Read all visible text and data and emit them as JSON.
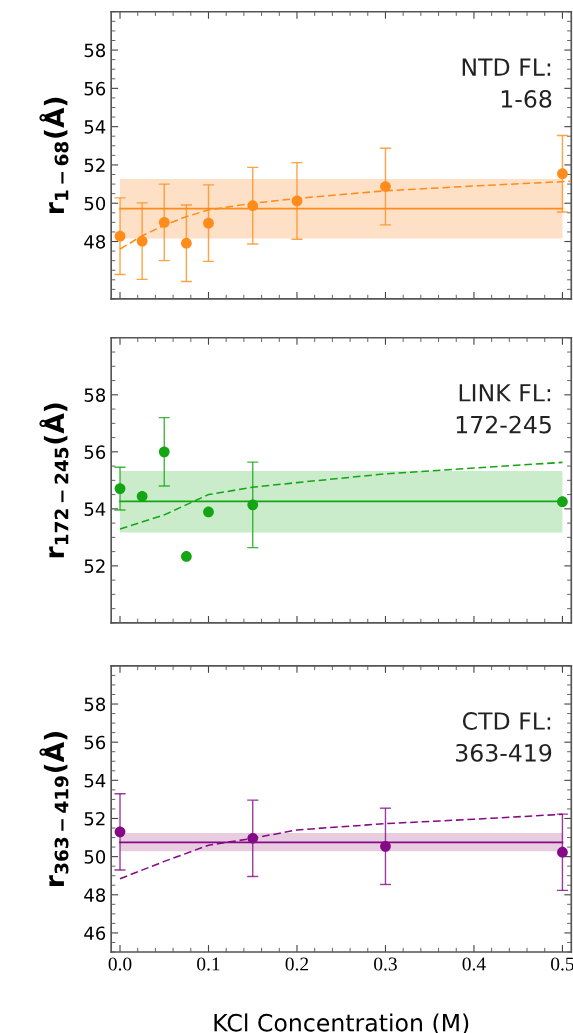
{
  "chart_data": [
    {
      "type": "scatter",
      "ylabel": "r$_{1−68}$(Å)",
      "annotations": [
        "NTD FL:\n1-68"
      ],
      "xlim": [
        -0.01,
        0.51
      ],
      "ylim": [
        45,
        60
      ],
      "yticks": [
        48,
        50,
        52,
        54,
        56,
        58
      ],
      "tick_labels": "y",
      "grid": false,
      "legend": false,
      "marker": "circle",
      "series": [
        {
          "color": "#ff8c1a",
          "x": [
            0,
            0.025,
            0.05,
            0.075,
            0.1,
            0.15,
            0.2,
            0.3,
            0.5
          ],
          "values": [
            48.28,
            48.02,
            49.0,
            47.91,
            48.96,
            49.87,
            50.12,
            50.87,
            51.54
          ],
          "errors": [
            2,
            2,
            2,
            2,
            2,
            2,
            2,
            2,
            2
          ]
        },
        {
          "type": "line",
          "marker": "none",
          "line_style": "dashed",
          "color": "#ff8c1a",
          "x": [
            0,
            0.025,
            0.05,
            0.075,
            0.1,
            0.15,
            0.2,
            0.3,
            0.4,
            0.51
          ],
          "values": [
            47.6,
            48.3,
            48.85,
            49.3,
            49.65,
            50.0,
            50.25,
            50.65,
            50.9,
            51.15
          ]
        }
      ],
      "ref_lines": [
        {
          "axis": "y",
          "value": 49.72,
          "color": "#ff8c1a"
        }
      ],
      "bands": [
        {
          "axis": "y",
          "from": 48.16,
          "to": 51.27,
          "color": "#fde0c5"
        }
      ]
    },
    {
      "type": "scatter",
      "ylabel": "r$_{172−245}$(Å)",
      "annotations": [
        "LINK FL:\n172-245"
      ],
      "xlim": [
        -0.01,
        0.51
      ],
      "ylim": [
        50,
        60
      ],
      "yticks": [
        52,
        54,
        56,
        58
      ],
      "tick_labels": "y",
      "grid": false,
      "legend": false,
      "marker": "circle",
      "series": [
        {
          "color": "#14a514",
          "x": [
            0,
            0.025,
            0.05,
            0.075,
            0.1,
            0.15,
            0.5
          ],
          "values": [
            54.71,
            54.44,
            56.0,
            52.33,
            53.89,
            54.14,
            54.25
          ],
          "errors": [
            0.75,
            null,
            1.2,
            null,
            null,
            1.5,
            null
          ]
        },
        {
          "type": "line",
          "marker": "none",
          "line_style": "dashed",
          "color": "#14a514",
          "x": [
            0,
            0.05,
            0.1,
            0.15,
            0.2,
            0.3,
            0.4,
            0.5
          ],
          "values": [
            53.29,
            53.79,
            54.5,
            54.76,
            54.92,
            55.23,
            55.43,
            55.63
          ]
        }
      ],
      "ref_lines": [
        {
          "axis": "y",
          "value": 54.26,
          "color": "#14a514"
        }
      ],
      "bands": [
        {
          "axis": "y",
          "from": 53.17,
          "to": 55.33,
          "color": "#cbeccb"
        }
      ]
    },
    {
      "type": "scatter",
      "ylabel": "r$_{363−419}$(Å)",
      "xlabel": "KCl Concentration (M)",
      "annotations": [
        "CTD FL:\n363-419"
      ],
      "xlim": [
        -0.01,
        0.51
      ],
      "ylim": [
        45,
        60
      ],
      "xticks": [
        {
          "value": 0,
          "label": "0.0"
        },
        0.1,
        0.2,
        0.3,
        0.4,
        0.5
      ],
      "yticks": [
        46,
        48,
        50,
        52,
        54,
        56,
        58
      ],
      "grid": false,
      "legend": false,
      "marker": "circle",
      "series": [
        {
          "color": "#850a85",
          "x": [
            0,
            0.15,
            0.3,
            0.5
          ],
          "values": [
            51.3,
            50.96,
            50.54,
            50.23
          ],
          "errors": [
            2,
            2,
            2,
            2
          ]
        },
        {
          "type": "line",
          "marker": "none",
          "line_style": "dashed",
          "color": "#850a85",
          "x": [
            0,
            0.05,
            0.1,
            0.15,
            0.2,
            0.3,
            0.4,
            0.5
          ],
          "values": [
            48.84,
            49.75,
            50.6,
            50.96,
            51.4,
            51.73,
            51.96,
            52.22
          ]
        }
      ],
      "ref_lines": [
        {
          "axis": "y",
          "value": 50.75,
          "color": "#850a85"
        }
      ],
      "bands": [
        {
          "axis": "y",
          "from": 50.28,
          "to": 51.24,
          "color": "#e8cde0"
        }
      ]
    }
  ]
}
